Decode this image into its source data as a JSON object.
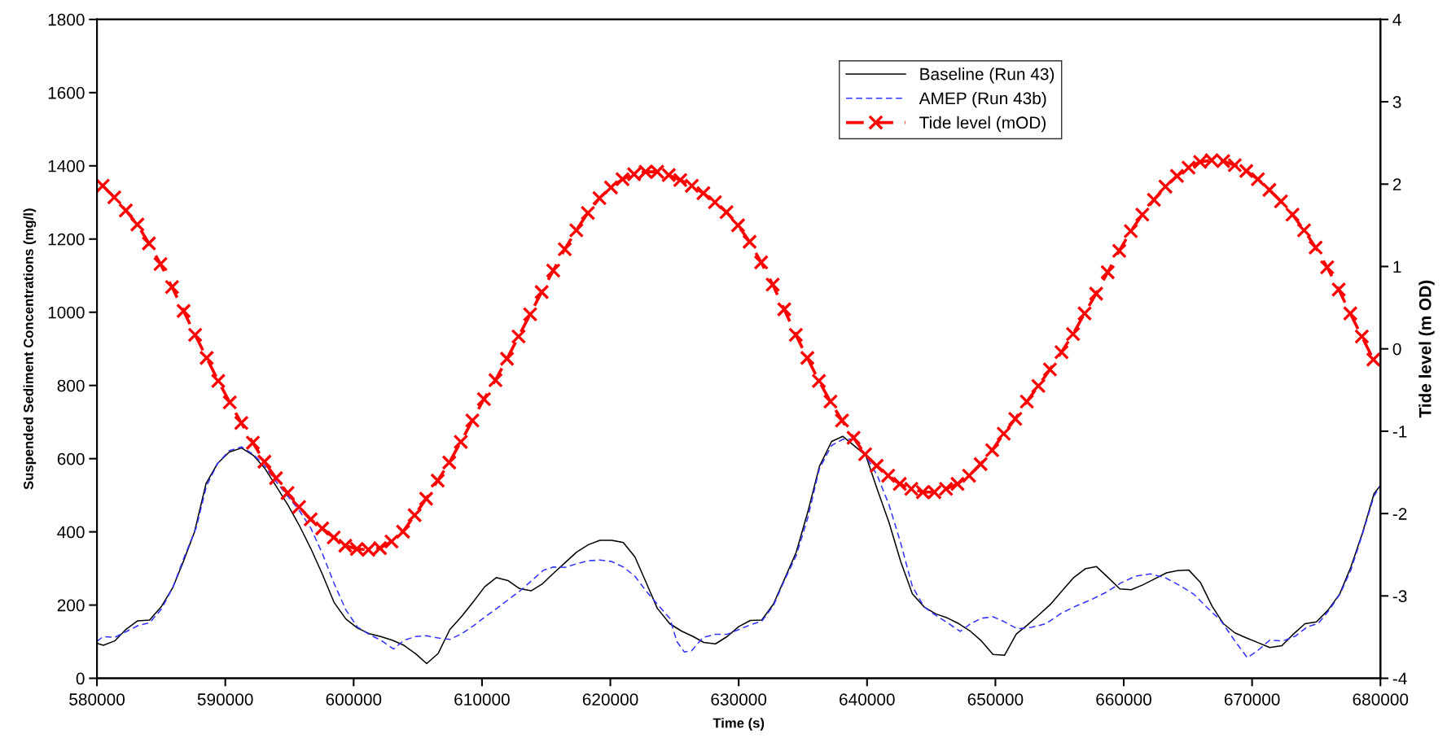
{
  "chart_data": {
    "type": "line",
    "xlabel": "Time (s)",
    "ylabel": "Suspended Sediment Concentrations (mg/l)",
    "y2label": "Tide level (m OD)",
    "xlim": [
      580000,
      680000
    ],
    "xticks": [
      580000,
      590000,
      600000,
      610000,
      620000,
      630000,
      640000,
      650000,
      660000,
      670000,
      680000
    ],
    "ylim": [
      0,
      1800
    ],
    "yticks": [
      0,
      200,
      400,
      600,
      800,
      1000,
      1200,
      1400,
      1600,
      1800
    ],
    "y2lim": [
      -4,
      4
    ],
    "y2ticks": [
      -4,
      -3,
      -2,
      -1,
      0,
      1,
      2,
      3,
      4
    ],
    "grid": false,
    "legend": "top",
    "series": [
      {
        "name": "Baseline (Run 43)",
        "color": "#000000",
        "line_style": "solid",
        "marker": "none",
        "x": [
          580000,
          580500,
          581380,
          582270,
          583170,
          584100,
          585000,
          585900,
          586800,
          587600,
          588500,
          589400,
          590310,
          591270,
          592180,
          593050,
          593960,
          594870,
          595760,
          596670,
          597580,
          598480,
          599390,
          600300,
          601210,
          602110,
          603010,
          603920,
          604830,
          605690,
          606590,
          607490,
          608440,
          609350,
          610210,
          611110,
          612020,
          612920,
          613830,
          614740,
          615570,
          616480,
          617380,
          618290,
          619190,
          620100,
          621010,
          621910,
          622820,
          623660,
          624630,
          625540,
          626450,
          627280,
          628190,
          629100,
          630000,
          630900,
          631800,
          632710,
          633570,
          634480,
          635380,
          636290,
          637240,
          638110,
          639900,
          640810,
          641710,
          642620,
          643530,
          644440,
          645350,
          646250,
          647160,
          648070,
          648910,
          649820,
          650720,
          651630,
          652470,
          653380,
          654290,
          655200,
          656100,
          656990,
          657880,
          658790,
          659700,
          660580,
          661470,
          662380,
          663330,
          664180,
          665060,
          665970,
          666880,
          667770,
          668660,
          669570,
          670480,
          671370,
          672320,
          673230,
          674120,
          675010,
          675910,
          676820,
          677710,
          678600,
          679500,
          680000
        ],
        "values": [
          96,
          90,
          102,
          134,
          157,
          159,
          195,
          247,
          325,
          400,
          532,
          587,
          618,
          629,
          609,
          575,
          525,
          474,
          418,
          354,
          283,
          207,
          162,
          137,
          122,
          114,
          104,
          90,
          67,
          40,
          68,
          133,
          170,
          210,
          250,
          275,
          267,
          245,
          239,
          259,
          287,
          316,
          345,
          365,
          377,
          377,
          371,
          332,
          259,
          191,
          149,
          129,
          114,
          98,
          94,
          114,
          141,
          158,
          159,
          203,
          271,
          344,
          454,
          579,
          647,
          661,
          609,
          515,
          426,
          319,
          231,
          195,
          176,
          165,
          149,
          128,
          102,
          65,
          63,
          121,
          145,
          173,
          202,
          239,
          275,
          299,
          305,
          275,
          244,
          242,
          255,
          271,
          288,
          294,
          296,
          262,
          197,
          149,
          124,
          110,
          97,
          84,
          89,
          121,
          149,
          154,
          186,
          230,
          305,
          397,
          504,
          527
        ]
      },
      {
        "name": "AMEP (Run 43b)",
        "color": "#3333ff",
        "line_style": "dashed",
        "marker": "none",
        "x": [
          580000,
          580490,
          581400,
          582300,
          583210,
          584110,
          585020,
          585900,
          586800,
          587740,
          588530,
          589400,
          590310,
          591270,
          592180,
          593050,
          593960,
          594870,
          595770,
          596670,
          597580,
          598480,
          599390,
          600300,
          601210,
          602110,
          603120,
          603920,
          604830,
          605690,
          606590,
          607490,
          608440,
          609350,
          610250,
          611160,
          612060,
          612970,
          613880,
          614780,
          615570,
          616480,
          617380,
          618290,
          619190,
          620100,
          621010,
          621910,
          622820,
          623720,
          624630,
          625190,
          625760,
          626330,
          627230,
          628190,
          629100,
          630000,
          630900,
          631800,
          632710,
          633570,
          634480,
          635380,
          636290,
          637240,
          638110,
          638990,
          639900,
          640810,
          641710,
          642620,
          643530,
          644440,
          645350,
          646250,
          647260,
          648070,
          648910,
          649820,
          650660,
          651720,
          652780,
          653940,
          655100,
          656260,
          657420,
          658580,
          659750,
          660910,
          662070,
          663230,
          664390,
          665450,
          666500,
          667560,
          668620,
          669630,
          670520,
          671370,
          672420,
          673370,
          674320,
          675160,
          676000,
          676850,
          677710,
          678600,
          679500,
          680000
        ],
        "values": [
          101,
          114,
          112,
          128,
          144,
          152,
          189,
          247,
          331,
          412,
          525,
          587,
          622,
          632,
          612,
          581,
          537,
          497,
          458,
          410,
          339,
          259,
          187,
          140,
          120,
          104,
          80,
          104,
          114,
          116,
          110,
          106,
          122,
          144,
          168,
          191,
          215,
          239,
          267,
          295,
          304,
          303,
          313,
          321,
          323,
          319,
          304,
          279,
          237,
          200,
          164,
          100,
          72,
          75,
          112,
          120,
          120,
          133,
          146,
          156,
          199,
          268,
          335,
          438,
          573,
          636,
          653,
          653,
          609,
          553,
          474,
          370,
          251,
          195,
          172,
          152,
          128,
          149,
          164,
          168,
          155,
          135,
          139,
          149,
          177,
          197,
          214,
          234,
          260,
          279,
          285,
          275,
          253,
          230,
          193,
          158,
          104,
          56,
          78,
          104,
          102,
          115,
          141,
          150,
          186,
          230,
          297,
          394,
          498,
          527
        ]
      },
      {
        "name": "Tide level (mOD)",
        "color": "#ff0000",
        "axis": "y2",
        "line_style": "dashed",
        "marker": "cross",
        "x": [
          580450,
          581350,
          582250,
          583150,
          584050,
          584950,
          585850,
          586750,
          587650,
          588550,
          589450,
          590350,
          591250,
          592150,
          593050,
          593950,
          594850,
          595750,
          596650,
          597550,
          598450,
          599350,
          600250,
          601150,
          602050,
          602950,
          603850,
          604750,
          605650,
          606550,
          607450,
          608350,
          609250,
          610150,
          611050,
          611950,
          612850,
          613750,
          614650,
          615550,
          616450,
          617350,
          618250,
          619150,
          620050,
          620950,
          621850,
          622750,
          623650,
          624550,
          625450,
          626350,
          627250,
          628150,
          629050,
          629950,
          630850,
          631750,
          632650,
          633550,
          634450,
          635350,
          636250,
          637150,
          638050,
          638950,
          639850,
          640750,
          641650,
          642550,
          643450,
          644350,
          645250,
          646150,
          647050,
          647950,
          648850,
          649750,
          650650,
          651550,
          652450,
          653350,
          654250,
          655150,
          656050,
          656950,
          657850,
          658750,
          659650,
          660550,
          661450,
          662350,
          663250,
          664150,
          665050,
          665950,
          666850,
          667750,
          668650,
          669550,
          670450,
          671350,
          672250,
          673150,
          674050,
          674950,
          675850,
          676750,
          677650,
          678550,
          679450
        ],
        "values": [
          1.98,
          1.84,
          1.68,
          1.51,
          1.28,
          1.03,
          0.75,
          0.46,
          0.17,
          -0.11,
          -0.39,
          -0.65,
          -0.9,
          -1.14,
          -1.37,
          -1.57,
          -1.75,
          -1.92,
          -2.07,
          -2.18,
          -2.29,
          -2.39,
          -2.43,
          -2.44,
          -2.42,
          -2.34,
          -2.22,
          -2.02,
          -1.82,
          -1.6,
          -1.38,
          -1.13,
          -0.87,
          -0.61,
          -0.38,
          -0.12,
          0.15,
          0.42,
          0.69,
          0.95,
          1.21,
          1.44,
          1.65,
          1.83,
          1.96,
          2.06,
          2.12,
          2.15,
          2.15,
          2.11,
          2.05,
          1.98,
          1.89,
          1.78,
          1.66,
          1.5,
          1.3,
          1.05,
          0.78,
          0.48,
          0.17,
          -0.11,
          -0.39,
          -0.64,
          -0.87,
          -1.08,
          -1.28,
          -1.42,
          -1.54,
          -1.64,
          -1.7,
          -1.74,
          -1.74,
          -1.7,
          -1.64,
          -1.54,
          -1.4,
          -1.23,
          -1.03,
          -0.85,
          -0.64,
          -0.45,
          -0.25,
          -0.04,
          0.18,
          0.43,
          0.67,
          0.93,
          1.19,
          1.43,
          1.63,
          1.81,
          1.97,
          2.1,
          2.2,
          2.27,
          2.29,
          2.28,
          2.23,
          2.16,
          2.06,
          1.93,
          1.79,
          1.63,
          1.44,
          1.23,
          0.99,
          0.72,
          0.43,
          0.15,
          -0.13
        ]
      }
    ]
  }
}
